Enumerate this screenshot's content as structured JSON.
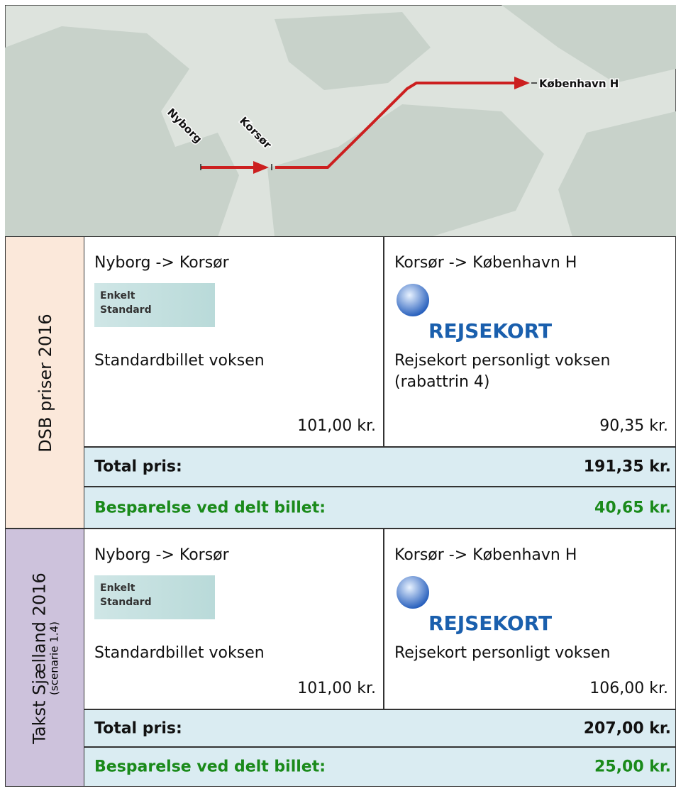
{
  "map": {
    "labels": [
      "Nyborg",
      "Korsør",
      "København H"
    ]
  },
  "sections": [
    {
      "label": "DSB priser 2016",
      "legs": [
        {
          "route": "Nyborg -> Korsør",
          "ticket": [
            "Enkelt",
            "Standard"
          ],
          "description": "Standardbillet voksen",
          "price": "101,00 kr."
        },
        {
          "route": "Korsør -> København H",
          "logo": "REJSEKORT",
          "description": "Rejsekort personligt voksen (rabattrin 4)",
          "price": "90,35 kr."
        }
      ],
      "total": {
        "label": "Total pris:",
        "value": "191,35 kr."
      },
      "savings": {
        "label": "Besparelse ved delt billet:",
        "value": "40,65 kr."
      }
    },
    {
      "label": "Takst Sjælland 2016",
      "sublabel": "(scenarie 1.4)",
      "legs": [
        {
          "route": "Nyborg -> Korsør",
          "ticket": [
            "Enkelt",
            "Standard"
          ],
          "description": "Standardbillet voksen",
          "price": "101,00 kr."
        },
        {
          "route": "Korsør -> København H",
          "logo": "REJSEKORT",
          "description": "Rejsekort personligt voksen",
          "price": "106,00 kr."
        }
      ],
      "total": {
        "label": "Total pris:",
        "value": "207,00 kr."
      },
      "savings": {
        "label": "Besparelse ved delt billet:",
        "value": "25,00 kr."
      }
    }
  ]
}
